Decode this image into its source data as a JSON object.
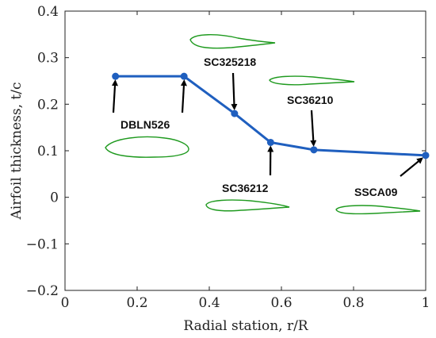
{
  "chart_data": {
    "type": "line",
    "xlabel": "Radial station, r/R",
    "ylabel": "Airfoil thickness, t/c",
    "xlim": [
      0,
      1
    ],
    "ylim": [
      -0.2,
      0.4
    ],
    "xticks": [
      0,
      0.2,
      0.4,
      0.6,
      0.8,
      1
    ],
    "xtick_labels": [
      "0",
      "0.2",
      "0.4",
      "0.6",
      "0.8",
      "1"
    ],
    "yticks": [
      -0.2,
      -0.1,
      0,
      0.1,
      0.2,
      0.3,
      0.4
    ],
    "ytick_labels": [
      "−0.2",
      "−0.1",
      "0",
      "0.1",
      "0.2",
      "0.3",
      "0.4"
    ],
    "grid": false,
    "line_color": "#1f5fbf",
    "airfoil_color": "#1f9a1f",
    "series": [
      {
        "x": [
          0.14,
          0.33,
          0.47,
          0.57,
          0.69,
          1.0
        ],
        "y": [
          0.26,
          0.26,
          0.18,
          0.118,
          0.102,
          0.09
        ]
      }
    ],
    "annotations": [
      {
        "text": "DBLN526",
        "tip": [
          0.14,
          0.26
        ]
      },
      {
        "text": "SC325218",
        "tip": [
          0.47,
          0.18
        ]
      },
      {
        "text": "SC36212",
        "tip": [
          0.57,
          0.118
        ]
      },
      {
        "text": "SC36210",
        "tip": [
          0.69,
          0.102
        ]
      },
      {
        "text": "SSCA09",
        "tip": [
          1.0,
          0.09
        ]
      }
    ]
  }
}
